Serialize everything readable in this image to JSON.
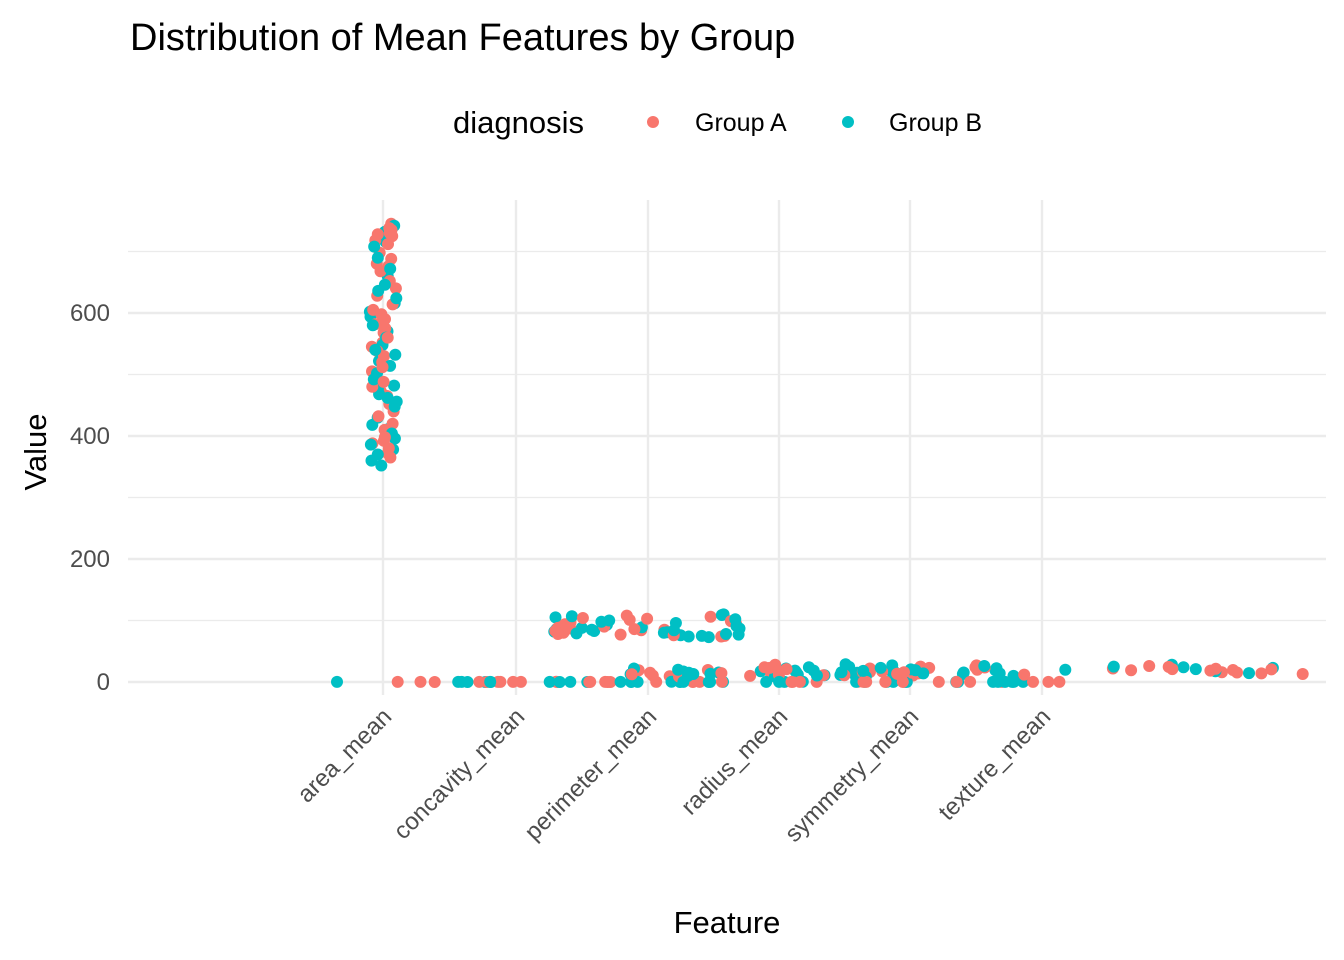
{
  "chart_data": {
    "type": "scatter",
    "title": "Distribution of Mean Features by Group",
    "xlabel": "Feature",
    "ylabel": "Value",
    "legend": {
      "title": "diagnosis",
      "placement": "top"
    },
    "categories": [
      "area_mean",
      "concavity_mean",
      "perimeter_mean",
      "radius_mean",
      "symmetry_mean",
      "texture_mean"
    ],
    "ylim": [
      -15,
      755
    ],
    "yticks": [
      0,
      200,
      400,
      600
    ],
    "grid": true,
    "series": [
      {
        "name": "Group A",
        "color": "#F8766D",
        "groups": {
          "area_mean": [
            745,
            738,
            735,
            730,
            728,
            725,
            722,
            718,
            712,
            698,
            688,
            680,
            676,
            668,
            652,
            640,
            628,
            614,
            605,
            598,
            590,
            582,
            575,
            568,
            560,
            552,
            545,
            538,
            530,
            520,
            512,
            505,
            496,
            488,
            480,
            472,
            465,
            452,
            440,
            432,
            420,
            410,
            398,
            392,
            388,
            380,
            372,
            365
          ],
          "concavity_mean": [
            0.02,
            0.04,
            0.06,
            0.08,
            0.1,
            0.12,
            0.15,
            0.18,
            0.2,
            0.25,
            0.03,
            0.05,
            0.07,
            0.09,
            0.11,
            0.13,
            0.16,
            0.19,
            0.22,
            0.3
          ],
          "perimeter_mean": [
            108,
            106,
            104,
            103,
            101,
            99,
            97,
            95,
            94,
            92,
            90,
            89,
            88,
            87,
            86,
            85,
            84,
            83,
            82,
            80,
            79,
            78,
            77,
            76,
            75,
            74
          ],
          "radius_mean": [
            24,
            23,
            22,
            21,
            20,
            19.5,
            19,
            18,
            17,
            16.5,
            16,
            15,
            14.5,
            14,
            13.5,
            13,
            12.5,
            12,
            11.5,
            11,
            10.5,
            10,
            9.5,
            9
          ],
          "symmetry_mean": [
            0.15,
            0.16,
            0.17,
            0.18,
            0.19,
            0.2,
            0.21,
            0.22,
            0.23,
            0.24,
            0.25,
            0.26,
            0.17,
            0.19,
            0.21,
            0.18,
            0.2,
            0.22
          ],
          "texture_mean": [
            28,
            27,
            26,
            25,
            24.5,
            24,
            23.5,
            23,
            22,
            21.5,
            21,
            20.5,
            20,
            19.5,
            19,
            18.5,
            18,
            17,
            16.5,
            16,
            15.5,
            15,
            14,
            13,
            12,
            11,
            10.5
          ]
        }
      },
      {
        "name": "Group B",
        "color": "#00BFC4",
        "groups": {
          "area_mean": [
            742,
            732,
            726,
            716,
            708,
            690,
            672,
            660,
            646,
            636,
            624,
            616,
            602,
            594,
            580,
            570,
            560,
            548,
            540,
            532,
            522,
            514,
            502,
            492,
            482,
            476,
            468,
            462,
            456,
            448,
            430,
            418,
            412,
            404,
            396,
            386,
            378,
            370,
            360,
            352
          ],
          "concavity_mean": [
            0.01,
            0.03,
            0.05,
            0.07,
            0.09,
            0.11,
            0.14,
            0.17,
            0.21,
            0.24,
            0.02,
            0.04,
            0.06,
            0.08,
            0.1,
            0.12,
            0.15,
            0.18,
            0.2,
            0.28
          ],
          "perimeter_mean": [
            110,
            109,
            107,
            105,
            102,
            100,
            98,
            96,
            93,
            91,
            89,
            88,
            87,
            86,
            85,
            84,
            83,
            82,
            81,
            80,
            79,
            78,
            77,
            76,
            75,
            74,
            73
          ],
          "radius_mean": [
            24,
            23,
            22,
            21,
            20,
            19,
            18.5,
            18,
            17.5,
            17,
            16,
            15.5,
            15,
            14,
            13.5,
            13,
            12.5,
            12,
            11.5,
            11,
            10.5,
            10,
            9.5,
            9,
            8.5
          ],
          "symmetry_mean": [
            0.14,
            0.15,
            0.16,
            0.17,
            0.18,
            0.19,
            0.2,
            0.21,
            0.22,
            0.23,
            0.24,
            0.25,
            0.16,
            0.18,
            0.2,
            0.19,
            0.21,
            0.23
          ],
          "texture_mean": [
            29,
            28,
            27,
            26,
            25,
            24.5,
            24,
            23,
            22.5,
            22,
            21,
            20.5,
            20,
            19,
            18.5,
            18,
            17.5,
            17,
            16,
            15.5,
            15,
            14.5,
            14,
            13,
            12,
            11.5,
            10
          ]
        }
      }
    ]
  }
}
